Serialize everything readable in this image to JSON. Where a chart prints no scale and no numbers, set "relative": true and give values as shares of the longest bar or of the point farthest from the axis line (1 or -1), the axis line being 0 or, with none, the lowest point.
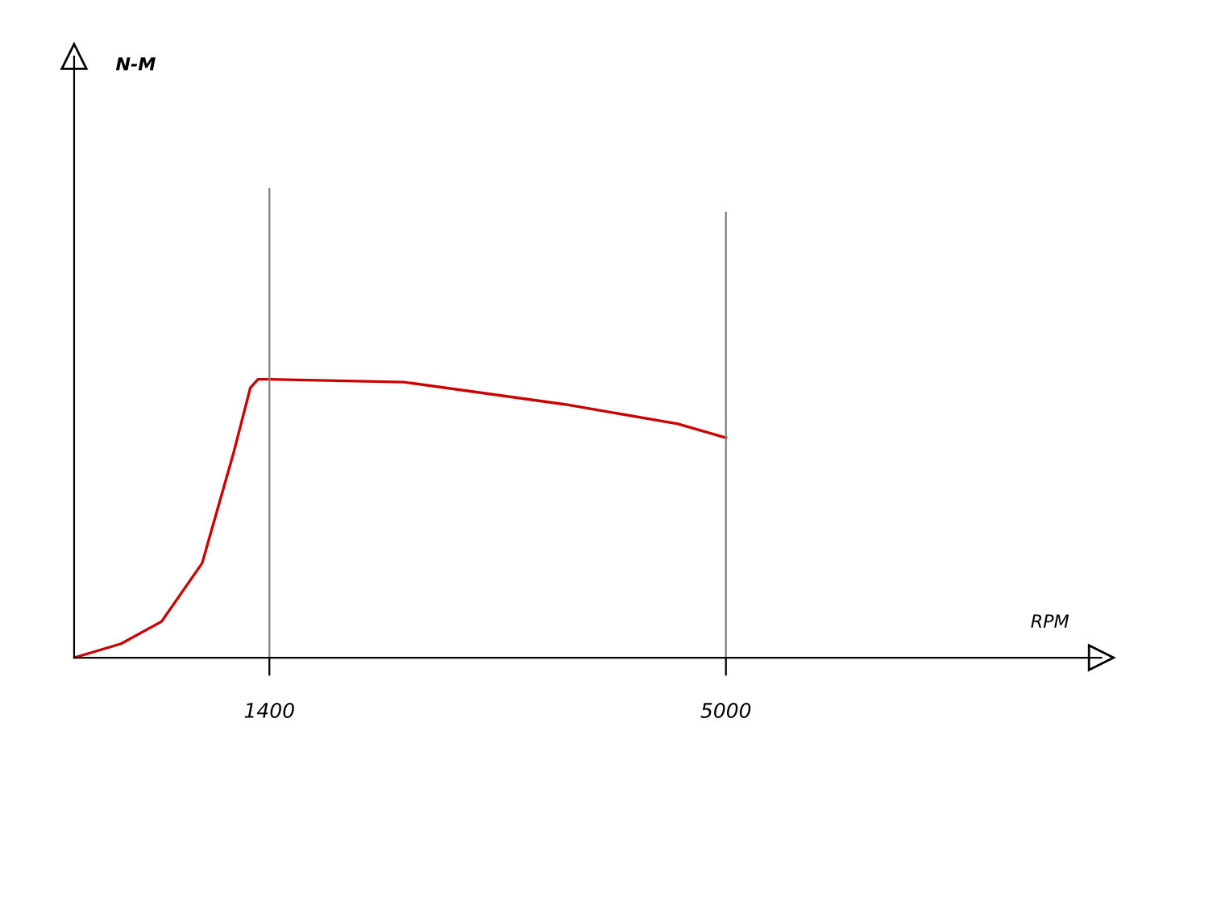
{
  "chart_data": {
    "type": "line",
    "xlabel": "RPM",
    "annotations": [
      "N-M"
    ],
    "relative": true,
    "x": [
      -140,
      230,
      550,
      870,
      1120,
      1250,
      1310,
      1400,
      2460,
      3730,
      4620,
      5000
    ],
    "series": [
      {
        "color": "#cc0000",
        "values": [
          0,
          0.05,
          0.13,
          0.34,
          0.74,
          0.97,
          1,
          1,
          0.99,
          0.91,
          0.84,
          0.79
        ]
      }
    ],
    "xlim": [
      -140,
      7960
    ],
    "xticks": [
      1400,
      5000
    ],
    "ref_lines": [
      {
        "axis": "x",
        "value": 1400,
        "color": "#808080"
      },
      {
        "axis": "x",
        "value": 5000,
        "color": "#808080"
      }
    ],
    "grid": false,
    "legend": false,
    "marker": "none",
    "line_style": "solid"
  }
}
